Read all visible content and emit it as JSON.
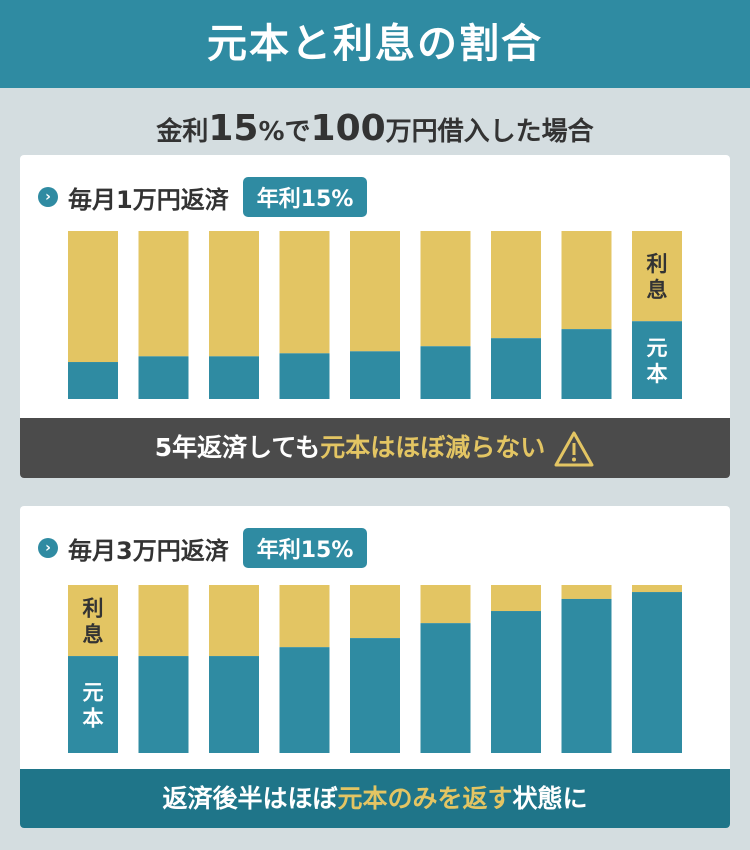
{
  "header": {
    "title": "元本と利息の割合"
  },
  "subtitle": {
    "p1": "金利",
    "rate": "15",
    "pct": "%",
    "p2": "で",
    "amount": "100",
    "p3": "万円借入した場合"
  },
  "colors": {
    "teal": "#2f8ba2",
    "gold": "#e3c563",
    "dark": "#4b4b4b",
    "deep_teal": "#1f7589"
  },
  "chart_data": [
    {
      "type": "bar",
      "stacked": true,
      "title": "毎月1万円返済",
      "badge": "年利15%",
      "series": [
        {
          "name": "元本",
          "label": "元本",
          "values": [
            0.22,
            0.254,
            0.254,
            0.272,
            0.284,
            0.314,
            0.362,
            0.416,
            0.463
          ]
        },
        {
          "name": "利息",
          "label": "利息",
          "values": [
            0.78,
            0.746,
            0.746,
            0.728,
            0.716,
            0.686,
            0.638,
            0.584,
            0.537
          ]
        }
      ],
      "ylim": [
        0,
        1
      ],
      "label_bar": 8,
      "footer": {
        "pre": "5年返済しても",
        "hl": "元本はほぼ減らない",
        "icon": "warning-icon"
      }
    },
    {
      "type": "bar",
      "stacked": true,
      "title": "毎月3万円返済",
      "badge": "年利15%",
      "series": [
        {
          "name": "元本",
          "label": "元本",
          "values": [
            0.577,
            0.577,
            0.577,
            0.63,
            0.684,
            0.773,
            0.845,
            0.917,
            0.958
          ]
        },
        {
          "name": "利息",
          "label": "利息",
          "values": [
            0.423,
            0.423,
            0.423,
            0.37,
            0.316,
            0.227,
            0.155,
            0.083,
            0.042
          ]
        }
      ],
      "ylim": [
        0,
        1
      ],
      "label_bar": 0,
      "footer": {
        "pre": "返済後半はほぼ",
        "hl": "元本のみを返す",
        "post": "状態に"
      }
    }
  ]
}
